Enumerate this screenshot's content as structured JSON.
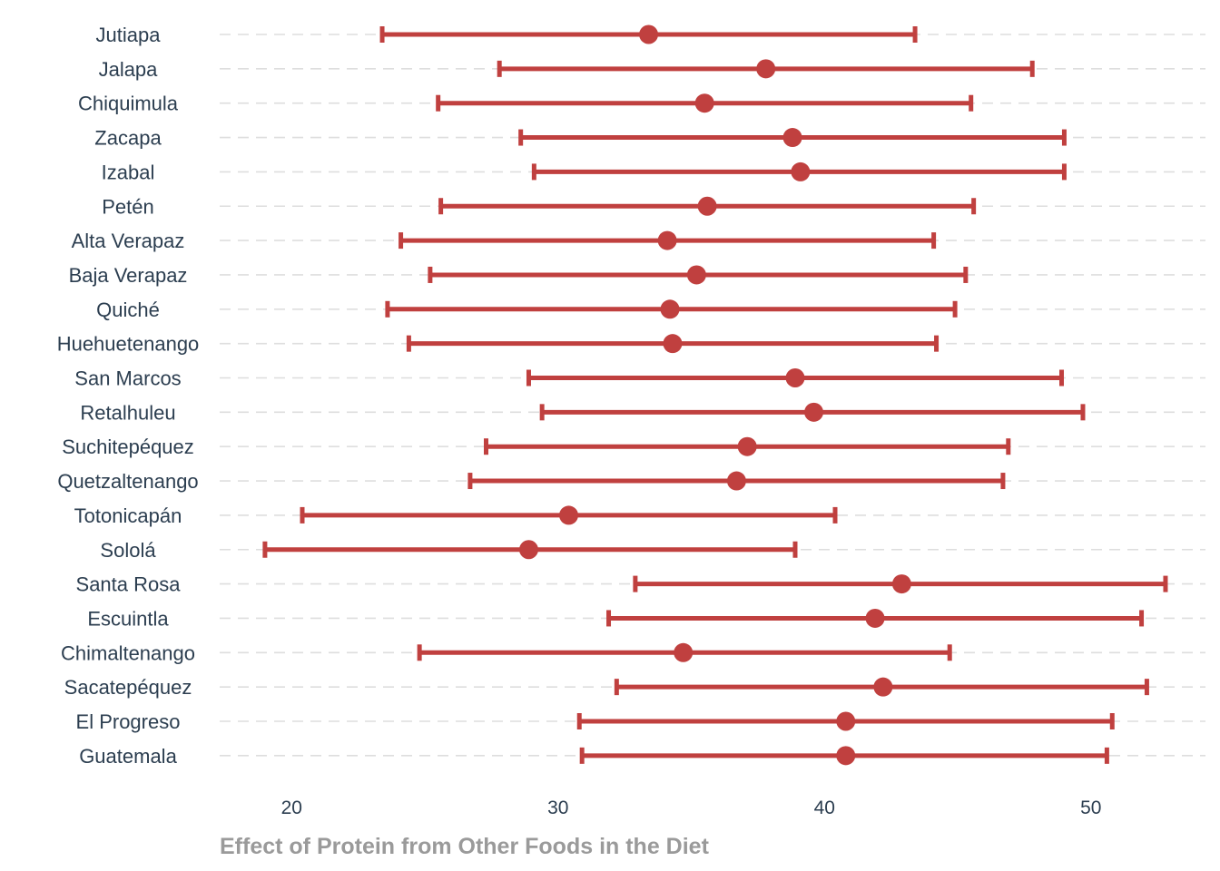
{
  "chart_data": {
    "type": "errorbar",
    "title": "",
    "xlabel": "Effect of Protein from Other Foods in the Diet",
    "ylabel": "",
    "xlim": [
      17.3,
      54.3
    ],
    "xticks": [
      20,
      30,
      40,
      50
    ],
    "grid": "horizontal-dashed",
    "color": "#c0403f",
    "points": [
      {
        "label": "Jutiapa",
        "estimate": 33.4,
        "low": 23.4,
        "high": 43.4
      },
      {
        "label": "Jalapa",
        "estimate": 37.8,
        "low": 27.8,
        "high": 47.8
      },
      {
        "label": "Chiquimula",
        "estimate": 35.5,
        "low": 25.5,
        "high": 45.5
      },
      {
        "label": "Zacapa",
        "estimate": 38.8,
        "low": 28.6,
        "high": 49.0
      },
      {
        "label": "Izabal",
        "estimate": 39.1,
        "low": 29.1,
        "high": 49.0
      },
      {
        "label": "Petén",
        "estimate": 35.6,
        "low": 25.6,
        "high": 45.6
      },
      {
        "label": "Alta Verapaz",
        "estimate": 34.1,
        "low": 24.1,
        "high": 44.1
      },
      {
        "label": "Baja Verapaz",
        "estimate": 35.2,
        "low": 25.2,
        "high": 45.3
      },
      {
        "label": "Quiché",
        "estimate": 34.2,
        "low": 23.6,
        "high": 44.9
      },
      {
        "label": "Huehuetenango",
        "estimate": 34.3,
        "low": 24.4,
        "high": 44.2
      },
      {
        "label": "San Marcos",
        "estimate": 38.9,
        "low": 28.9,
        "high": 48.9
      },
      {
        "label": "Retalhuleu",
        "estimate": 39.6,
        "low": 29.4,
        "high": 49.7
      },
      {
        "label": "Suchitepéquez",
        "estimate": 37.1,
        "low": 27.3,
        "high": 46.9
      },
      {
        "label": "Quetzaltenango",
        "estimate": 36.7,
        "low": 26.7,
        "high": 46.7
      },
      {
        "label": "Totonicapán",
        "estimate": 30.4,
        "low": 20.4,
        "high": 40.4
      },
      {
        "label": "Sololá",
        "estimate": 28.9,
        "low": 19.0,
        "high": 38.9
      },
      {
        "label": "Santa Rosa",
        "estimate": 42.9,
        "low": 32.9,
        "high": 52.8
      },
      {
        "label": "Escuintla",
        "estimate": 41.9,
        "low": 31.9,
        "high": 51.9
      },
      {
        "label": "Chimaltenango",
        "estimate": 34.7,
        "low": 24.8,
        "high": 44.7
      },
      {
        "label": "Sacatepéquez",
        "estimate": 42.2,
        "low": 32.2,
        "high": 52.1
      },
      {
        "label": "El Progreso",
        "estimate": 40.8,
        "low": 30.8,
        "high": 50.8
      },
      {
        "label": "Guatemala",
        "estimate": 40.8,
        "low": 30.9,
        "high": 50.6
      }
    ]
  }
}
